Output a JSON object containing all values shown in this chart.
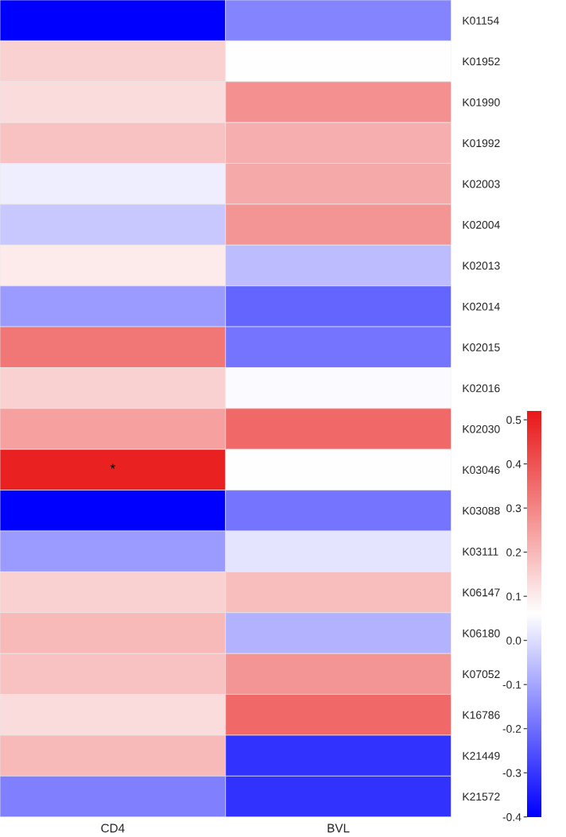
{
  "chart_data": {
    "type": "heatmap",
    "categories": [
      "CD4",
      "BVL"
    ],
    "y_categories": [
      "K01154",
      "K01952",
      "K01990",
      "K01992",
      "K02003",
      "K02004",
      "K02013",
      "K02014",
      "K02015",
      "K02016",
      "K02030",
      "K03046",
      "K03088",
      "K03111",
      "K06147",
      "K06180",
      "K07052",
      "K16786",
      "K21449",
      "K21572"
    ],
    "cells": [
      [
        -0.4,
        -0.16
      ],
      [
        0.15,
        0.06
      ],
      [
        0.13,
        0.28
      ],
      [
        0.18,
        0.22
      ],
      [
        0.03,
        0.23
      ],
      [
        -0.04,
        0.27
      ],
      [
        0.1,
        -0.06
      ],
      [
        -0.12,
        -0.22
      ],
      [
        0.33,
        -0.19
      ],
      [
        0.15,
        0.05
      ],
      [
        0.25,
        0.36
      ],
      [
        0.5,
        0.06
      ],
      [
        -0.4,
        -0.19
      ],
      [
        -0.12,
        0.01
      ],
      [
        0.15,
        0.19
      ],
      [
        0.2,
        -0.08
      ],
      [
        0.18,
        0.27
      ],
      [
        0.13,
        0.36
      ],
      [
        0.2,
        -0.31
      ],
      [
        -0.17,
        -0.31
      ]
    ],
    "cell_labels": [
      [
        null,
        null
      ],
      [
        null,
        null
      ],
      [
        null,
        null
      ],
      [
        null,
        null
      ],
      [
        null,
        null
      ],
      [
        null,
        null
      ],
      [
        null,
        null
      ],
      [
        null,
        null
      ],
      [
        null,
        null
      ],
      [
        null,
        null
      ],
      [
        null,
        null
      ],
      [
        "*",
        null
      ],
      [
        null,
        null
      ],
      [
        null,
        null
      ],
      [
        null,
        null
      ],
      [
        null,
        null
      ],
      [
        null,
        null
      ],
      [
        null,
        null
      ],
      [
        null,
        null
      ],
      [
        null,
        null
      ]
    ],
    "clim": [
      -0.4,
      0.52
    ],
    "cticks": [
      {
        "value": -0.4,
        "label": "-0.4"
      },
      {
        "value": -0.3,
        "label": "-0.3"
      },
      {
        "value": -0.2,
        "label": "-0.2"
      },
      {
        "value": -0.1,
        "label": "-0.1"
      },
      {
        "value": 0.0,
        "label": "0.0"
      },
      {
        "value": 0.1,
        "label": "0.1"
      },
      {
        "value": 0.2,
        "label": "0.2"
      },
      {
        "value": 0.3,
        "label": "0.3"
      },
      {
        "value": 0.4,
        "label": "0.4"
      },
      {
        "value": 0.5,
        "label": "0.5"
      }
    ]
  }
}
